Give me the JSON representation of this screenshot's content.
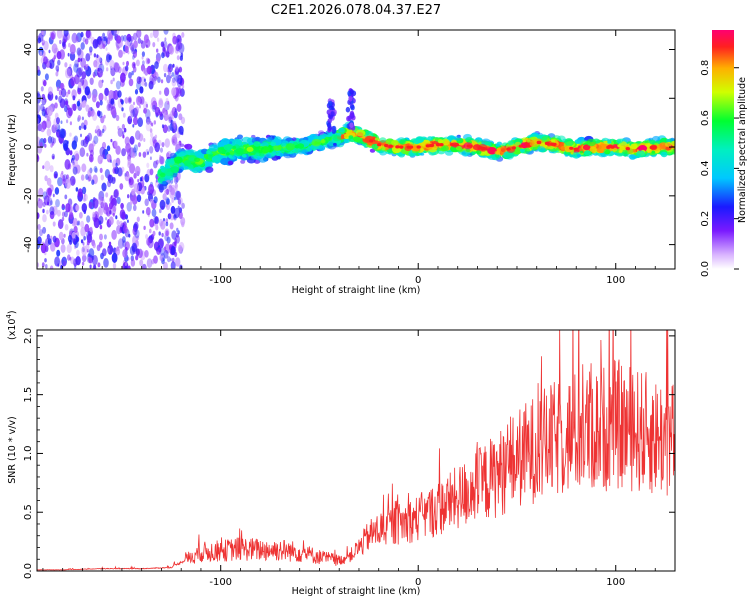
{
  "title": "C2E1.2026.078.04.37.E27",
  "chart_data": [
    {
      "type": "heatmap",
      "title": "C2E1.2026.078.04.37.E27",
      "xlabel": "Height of straight line (km)",
      "ylabel": "Frequency (Hz)",
      "xlim": [
        -193,
        130
      ],
      "ylim": [
        -50,
        48
      ],
      "x_ticks": [
        -100,
        0,
        100
      ],
      "x_tick_labels": [
        "-100",
        "0",
        "100"
      ],
      "y_ticks": [
        -40,
        -20,
        0,
        20,
        40
      ],
      "y_tick_labels": [
        "-40",
        "-20",
        "0",
        "20",
        "40"
      ],
      "colorbar": {
        "label": "Normalized spectral amplitude",
        "range": [
          0.0,
          0.95
        ],
        "ticks": [
          0.0,
          0.2,
          0.4,
          0.6,
          0.8
        ],
        "tick_labels": [
          "0.0",
          "0.2",
          "0.4",
          "0.6",
          "0.8"
        ],
        "colormap": "rainbow (white-violet-blue-cyan-green-yellow-red)"
      },
      "ridge_frequency": {
        "x": [
          -130,
          -120,
          -110,
          -100,
          -90,
          -80,
          -70,
          -60,
          -50,
          -40,
          -35,
          -30,
          -20,
          -10,
          0,
          10,
          20,
          30,
          40,
          50,
          60,
          70,
          80,
          90,
          100,
          110,
          120,
          130
        ],
        "y": [
          -12,
          -5,
          -6,
          -2,
          -1,
          -1,
          0,
          0,
          2,
          4,
          6,
          5,
          1,
          0,
          0,
          1,
          1,
          0,
          -2,
          0,
          2,
          1,
          -1,
          0,
          0,
          -1,
          0,
          0
        ]
      },
      "noise_region_x": [
        -193,
        -125
      ],
      "burst_features": [
        {
          "x": -44,
          "y": 18
        },
        {
          "x": -34,
          "y": 22
        }
      ]
    },
    {
      "type": "line",
      "xlabel": "Height of straight line (km)",
      "ylabel": "SNR (10 * v/v)",
      "multiplier_label": "(x10",
      "multiplier_exponent": "4",
      "multiplier_suffix": ")",
      "xlim": [
        -193,
        130
      ],
      "ylim": [
        0,
        2.05
      ],
      "x_ticks": [
        -100,
        0,
        100
      ],
      "x_tick_labels": [
        "-100",
        "0",
        "100"
      ],
      "y_ticks": [
        0.0,
        0.5,
        1.0,
        1.5,
        2.0
      ],
      "y_tick_labels": [
        "0.0",
        "0.5",
        "1.0",
        "1.5",
        "2.0"
      ],
      "series": [
        {
          "name": "SNR",
          "color": "#ee3333",
          "x": [
            -193,
            -180,
            -160,
            -140,
            -125,
            -115,
            -110,
            -100,
            -90,
            -80,
            -70,
            -60,
            -50,
            -40,
            -35,
            -30,
            -25,
            -20,
            -10,
            0,
            10,
            20,
            30,
            40,
            50,
            60,
            70,
            80,
            90,
            100,
            110,
            120,
            130
          ],
          "y": [
            0.01,
            0.01,
            0.02,
            0.02,
            0.03,
            0.12,
            0.16,
            0.17,
            0.19,
            0.18,
            0.18,
            0.16,
            0.12,
            0.09,
            0.12,
            0.2,
            0.3,
            0.35,
            0.4,
            0.45,
            0.53,
            0.62,
            0.72,
            0.82,
            0.95,
            1.05,
            1.12,
            1.18,
            1.2,
            1.25,
            1.2,
            1.15,
            1.12
          ]
        }
      ]
    }
  ]
}
